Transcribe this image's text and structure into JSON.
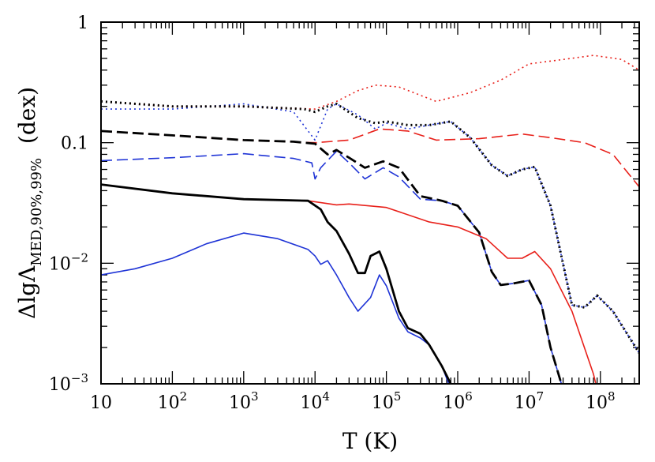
{
  "chart_data": {
    "type": "line",
    "xscale": "log",
    "yscale": "log",
    "xlim": [
      10,
      350000000
    ],
    "ylim": [
      0.001,
      1
    ],
    "xlabel": "T  (K)",
    "ylabel": {
      "prefix": "ΔlgΛ",
      "subscript": "MED,90%,99%",
      "suffix": "  (dex)"
    },
    "x_tick_labels": [
      {
        "value": 10,
        "base": "10",
        "exp": ""
      },
      {
        "value": 100,
        "base": "10",
        "exp": "2"
      },
      {
        "value": 1000,
        "base": "10",
        "exp": "3"
      },
      {
        "value": 10000,
        "base": "10",
        "exp": "4"
      },
      {
        "value": 100000,
        "base": "10",
        "exp": "5"
      },
      {
        "value": 1000000,
        "base": "10",
        "exp": "6"
      },
      {
        "value": 10000000,
        "base": "10",
        "exp": "7"
      },
      {
        "value": 100000000,
        "base": "10",
        "exp": "8"
      }
    ],
    "y_tick_labels": [
      {
        "value": 1,
        "base": "1",
        "exp": ""
      },
      {
        "value": 0.1,
        "base": "0.1",
        "exp": ""
      },
      {
        "value": 0.01,
        "base": "10",
        "exp": "−2"
      },
      {
        "value": 0.001,
        "base": "10",
        "exp": "−3"
      }
    ],
    "colors": {
      "black": "#000000",
      "red": "#e8201a",
      "blue": "#1f34d6"
    },
    "series": [
      {
        "color": "red",
        "style": "dotted",
        "points": [
          [
            10,
            0.22
          ],
          [
            100,
            0.2
          ],
          [
            1000,
            0.2
          ],
          [
            10000,
            0.19
          ],
          [
            20000,
            0.22
          ],
          [
            40000,
            0.27
          ],
          [
            70000,
            0.3
          ],
          [
            150000,
            0.29
          ],
          [
            500000,
            0.22
          ],
          [
            1500000,
            0.26
          ],
          [
            4000000,
            0.33
          ],
          [
            10000000,
            0.45
          ],
          [
            30000000,
            0.49
          ],
          [
            80000000,
            0.53
          ],
          [
            200000000,
            0.49
          ],
          [
            350000000,
            0.4
          ]
        ]
      },
      {
        "color": "blue",
        "style": "dotted",
        "points": [
          [
            10,
            0.19
          ],
          [
            100,
            0.19
          ],
          [
            1000,
            0.21
          ],
          [
            5000,
            0.18
          ],
          [
            10000,
            0.105
          ],
          [
            15000,
            0.19
          ],
          [
            20000,
            0.21
          ],
          [
            40000,
            0.17
          ],
          [
            70000,
            0.13
          ],
          [
            100000,
            0.145
          ],
          [
            200000,
            0.13
          ],
          [
            400000,
            0.14
          ],
          [
            800000,
            0.15
          ],
          [
            1500000,
            0.11
          ],
          [
            3000000,
            0.065
          ],
          [
            5000000,
            0.053
          ],
          [
            8000000,
            0.06
          ],
          [
            12000000,
            0.063
          ],
          [
            20000000,
            0.03
          ],
          [
            40000000,
            0.0045
          ],
          [
            60000000,
            0.0043
          ],
          [
            90000000,
            0.0054
          ],
          [
            150000000,
            0.004
          ],
          [
            350000000,
            0.0018
          ]
        ]
      },
      {
        "color": "black",
        "style": "dotted",
        "points": [
          [
            10,
            0.22
          ],
          [
            100,
            0.2
          ],
          [
            1000,
            0.2
          ],
          [
            7000,
            0.19
          ],
          [
            10000,
            0.18
          ],
          [
            15000,
            0.2
          ],
          [
            20000,
            0.21
          ],
          [
            40000,
            0.16
          ],
          [
            70000,
            0.145
          ],
          [
            100000,
            0.15
          ],
          [
            200000,
            0.14
          ],
          [
            400000,
            0.14
          ],
          [
            800000,
            0.15
          ],
          [
            1500000,
            0.11
          ],
          [
            3000000,
            0.065
          ],
          [
            5000000,
            0.053
          ],
          [
            8000000,
            0.06
          ],
          [
            12000000,
            0.063
          ],
          [
            20000000,
            0.03
          ],
          [
            40000000,
            0.0045
          ],
          [
            60000000,
            0.0043
          ],
          [
            90000000,
            0.0054
          ],
          [
            150000000,
            0.004
          ],
          [
            350000000,
            0.0018
          ]
        ]
      },
      {
        "color": "red",
        "style": "dashed",
        "points": [
          [
            10,
            0.125
          ],
          [
            100,
            0.115
          ],
          [
            1000,
            0.105
          ],
          [
            10000,
            0.1
          ],
          [
            30000,
            0.105
          ],
          [
            80000,
            0.13
          ],
          [
            200000,
            0.125
          ],
          [
            500000,
            0.105
          ],
          [
            2000000,
            0.108
          ],
          [
            8000000,
            0.118
          ],
          [
            20000000,
            0.11
          ],
          [
            60000000,
            0.1
          ],
          [
            150000000,
            0.08
          ],
          [
            350000000,
            0.043
          ]
        ]
      },
      {
        "color": "blue",
        "style": "dashed",
        "points": [
          [
            10,
            0.071
          ],
          [
            100,
            0.075
          ],
          [
            1000,
            0.081
          ],
          [
            5000,
            0.074
          ],
          [
            9000,
            0.068
          ],
          [
            10000,
            0.05
          ],
          [
            12000,
            0.062
          ],
          [
            20000,
            0.085
          ],
          [
            30000,
            0.068
          ],
          [
            50000,
            0.05
          ],
          [
            90000,
            0.062
          ],
          [
            150000,
            0.052
          ],
          [
            300000,
            0.034
          ],
          [
            600000,
            0.033
          ],
          [
            1000000,
            0.03
          ],
          [
            2000000,
            0.018
          ],
          [
            3000000,
            0.0085
          ],
          [
            4000000,
            0.0066
          ],
          [
            6000000,
            0.0068
          ],
          [
            10000000,
            0.0072
          ],
          [
            15000000,
            0.0045
          ],
          [
            20000000,
            0.002
          ],
          [
            30000000,
            0.0009
          ]
        ]
      },
      {
        "color": "black",
        "style": "dashed",
        "points": [
          [
            10,
            0.125
          ],
          [
            100,
            0.115
          ],
          [
            1000,
            0.105
          ],
          [
            5000,
            0.102
          ],
          [
            10000,
            0.098
          ],
          [
            15000,
            0.08
          ],
          [
            20000,
            0.087
          ],
          [
            30000,
            0.075
          ],
          [
            50000,
            0.062
          ],
          [
            90000,
            0.07
          ],
          [
            150000,
            0.062
          ],
          [
            300000,
            0.036
          ],
          [
            600000,
            0.033
          ],
          [
            1000000,
            0.03
          ],
          [
            2000000,
            0.018
          ],
          [
            3000000,
            0.0085
          ],
          [
            4000000,
            0.0066
          ],
          [
            6000000,
            0.0068
          ],
          [
            10000000,
            0.0072
          ],
          [
            15000000,
            0.0045
          ],
          [
            20000000,
            0.002
          ],
          [
            30000000,
            0.0009
          ]
        ]
      },
      {
        "color": "red",
        "style": "solid",
        "points": [
          [
            10,
            0.045
          ],
          [
            100,
            0.038
          ],
          [
            1000,
            0.034
          ],
          [
            8000,
            0.033
          ],
          [
            20000,
            0.0305
          ],
          [
            30000,
            0.031
          ],
          [
            100000,
            0.029
          ],
          [
            400000,
            0.022
          ],
          [
            1000000,
            0.02
          ],
          [
            2500000,
            0.016
          ],
          [
            5000000,
            0.011
          ],
          [
            8000000,
            0.011
          ],
          [
            12000000,
            0.0125
          ],
          [
            20000000,
            0.009
          ],
          [
            40000000,
            0.004
          ],
          [
            80000000,
            0.0012
          ],
          [
            90000000,
            0.0009
          ]
        ]
      },
      {
        "color": "blue",
        "style": "solid",
        "points": [
          [
            10,
            0.008
          ],
          [
            30,
            0.009
          ],
          [
            100,
            0.011
          ],
          [
            300,
            0.0145
          ],
          [
            1000,
            0.0178
          ],
          [
            3000,
            0.016
          ],
          [
            8000,
            0.013
          ],
          [
            10000,
            0.0115
          ],
          [
            12000,
            0.0098
          ],
          [
            15000,
            0.0105
          ],
          [
            20000,
            0.008
          ],
          [
            30000,
            0.0052
          ],
          [
            40000,
            0.004
          ],
          [
            60000,
            0.0052
          ],
          [
            80000,
            0.008
          ],
          [
            100000,
            0.0065
          ],
          [
            150000,
            0.0035
          ],
          [
            200000,
            0.0027
          ],
          [
            300000,
            0.0024
          ],
          [
            400000,
            0.0021
          ],
          [
            600000,
            0.0014
          ],
          [
            750000,
            0.001
          ]
        ]
      },
      {
        "color": "black",
        "style": "solid",
        "points": [
          [
            10,
            0.045
          ],
          [
            100,
            0.038
          ],
          [
            1000,
            0.034
          ],
          [
            8000,
            0.033
          ],
          [
            12000,
            0.028
          ],
          [
            15000,
            0.022
          ],
          [
            20000,
            0.0185
          ],
          [
            30000,
            0.012
          ],
          [
            40000,
            0.0083
          ],
          [
            50000,
            0.0083
          ],
          [
            60000,
            0.0115
          ],
          [
            80000,
            0.0125
          ],
          [
            100000,
            0.009
          ],
          [
            150000,
            0.004
          ],
          [
            200000,
            0.0029
          ],
          [
            300000,
            0.0026
          ],
          [
            400000,
            0.0021
          ],
          [
            600000,
            0.0014
          ],
          [
            800000,
            0.001
          ]
        ]
      }
    ]
  }
}
